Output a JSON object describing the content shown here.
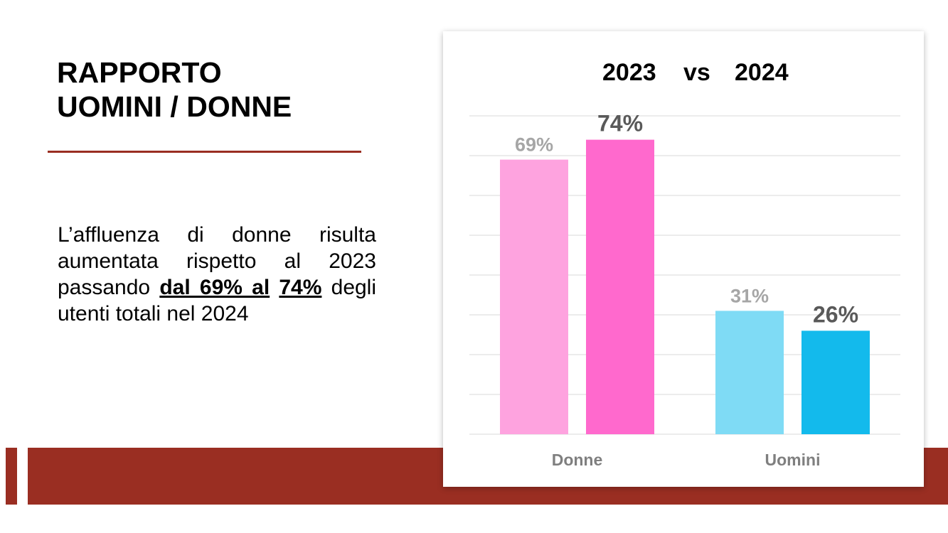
{
  "slide": {
    "title_line1": "RAPPORTO",
    "title_line2": "UOMINI / DONNE",
    "body_prefix": "L’affluenza di donne risulta aumentata rispetto al 2023 passando ",
    "body_emphasis_1": "dal 69% al",
    "body_emphasis_2": "74%",
    "body_suffix": " degli utenti totali nel 2024"
  },
  "colors": {
    "accent": "#9a2e22",
    "gridline": "#d9d9d9"
  },
  "chart_data": {
    "type": "bar",
    "title_parts": [
      "2023",
      "vs",
      "2024"
    ],
    "categories": [
      "Donne",
      "Uomini"
    ],
    "series": [
      {
        "name": "2023",
        "values": [
          69,
          31
        ],
        "labels": [
          "69%",
          "31%"
        ],
        "colors": [
          "#fea3df",
          "#7fdbf5"
        ]
      },
      {
        "name": "2024",
        "values": [
          74,
          26
        ],
        "labels": [
          "74%",
          "26%"
        ],
        "colors": [
          "#ff69cd",
          "#13baec"
        ]
      }
    ],
    "ylim": [
      0,
      80
    ],
    "grid": true,
    "legend": "none",
    "xlabel": "",
    "ylabel": ""
  }
}
